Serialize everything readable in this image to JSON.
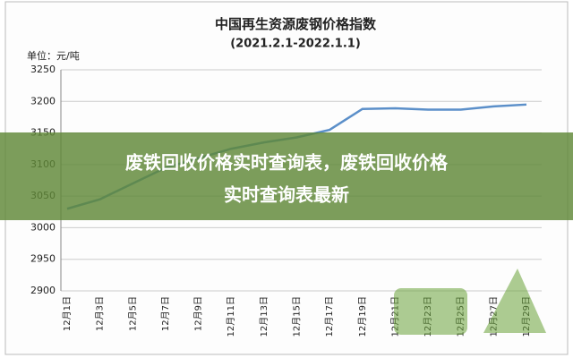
{
  "chart_data": {
    "type": "line",
    "title": "中国再生资源废钢价格指数",
    "subtitle": "(2021.2.1-2022.1.1)",
    "y_label": "单位：元/吨",
    "categories": [
      "12月1日",
      "12月3日",
      "12月5日",
      "12月7日",
      "12月9日",
      "12月11日",
      "12月13日",
      "12月15日",
      "12月17日",
      "12月19日",
      "12月21日",
      "12月23日",
      "12月25日",
      "12月27日",
      "12月29日"
    ],
    "values": [
      3030,
      3045,
      3070,
      3095,
      3110,
      3125,
      3135,
      3143,
      3155,
      3188,
      3189,
      3187,
      3187,
      3192,
      3195
    ],
    "color": "#5b8fc9",
    "ylim": [
      2900,
      3250
    ],
    "yticks": [
      2900,
      2950,
      3000,
      3050,
      3100,
      3150,
      3200,
      3250
    ],
    "grid": true
  },
  "banner": {
    "lines": [
      "废铁回收价格实时查询表，废铁回收价格",
      "实时查询表最新"
    ]
  }
}
